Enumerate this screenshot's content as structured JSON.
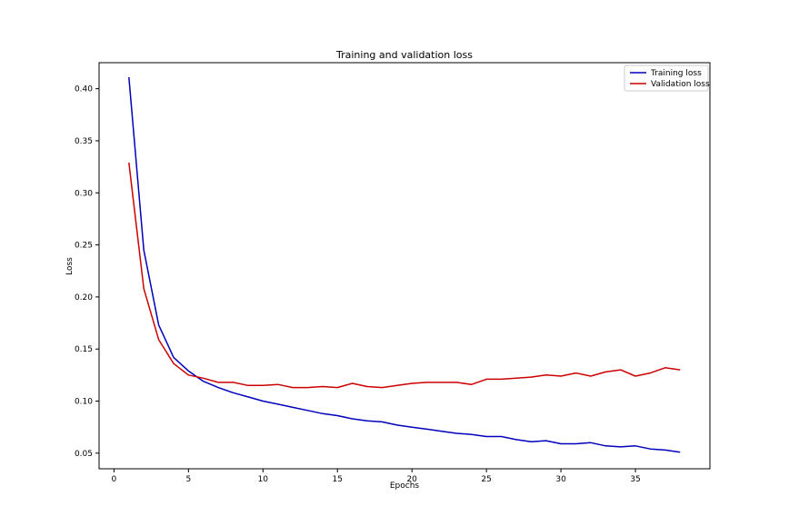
{
  "chart_data": {
    "type": "line",
    "title": "Training and validation loss",
    "xlabel": "Epochs",
    "ylabel": "Loss",
    "xlim": [
      -1,
      40
    ],
    "ylim": [
      0.035,
      0.425
    ],
    "xticks": [
      0,
      5,
      10,
      15,
      20,
      25,
      30,
      35
    ],
    "yticks": [
      0.05,
      0.1,
      0.15,
      0.2,
      0.25,
      0.3,
      0.35,
      0.4
    ],
    "ytick_labels": [
      "0.05",
      "0.10",
      "0.15",
      "0.20",
      "0.25",
      "0.30",
      "0.35",
      "0.40"
    ],
    "grid": false,
    "legend": "top-right",
    "x": [
      1,
      2,
      3,
      4,
      5,
      6,
      7,
      8,
      9,
      10,
      11,
      12,
      13,
      14,
      15,
      16,
      17,
      18,
      19,
      20,
      21,
      22,
      23,
      24,
      25,
      26,
      27,
      28,
      29,
      30,
      31,
      32,
      33,
      34,
      35,
      36,
      37,
      38
    ],
    "series": [
      {
        "name": "Training loss",
        "color": "#0000bb",
        "values": [
          0.411,
          0.245,
          0.173,
          0.142,
          0.129,
          0.119,
          0.113,
          0.108,
          0.104,
          0.1,
          0.097,
          0.094,
          0.091,
          0.088,
          0.086,
          0.083,
          0.081,
          0.08,
          0.077,
          0.075,
          0.073,
          0.071,
          0.069,
          0.068,
          0.066,
          0.066,
          0.063,
          0.061,
          0.062,
          0.059,
          0.059,
          0.06,
          0.057,
          0.056,
          0.057,
          0.054,
          0.053,
          0.051
        ]
      },
      {
        "name": "Validation loss",
        "color": "#cc0000",
        "values": [
          0.329,
          0.208,
          0.159,
          0.136,
          0.125,
          0.122,
          0.118,
          0.118,
          0.115,
          0.115,
          0.116,
          0.113,
          0.113,
          0.114,
          0.113,
          0.117,
          0.114,
          0.113,
          0.115,
          0.117,
          0.118,
          0.118,
          0.118,
          0.116,
          0.121,
          0.121,
          0.122,
          0.123,
          0.125,
          0.124,
          0.127,
          0.124,
          0.128,
          0.13,
          0.124,
          0.127,
          0.132,
          0.13
        ]
      }
    ]
  }
}
